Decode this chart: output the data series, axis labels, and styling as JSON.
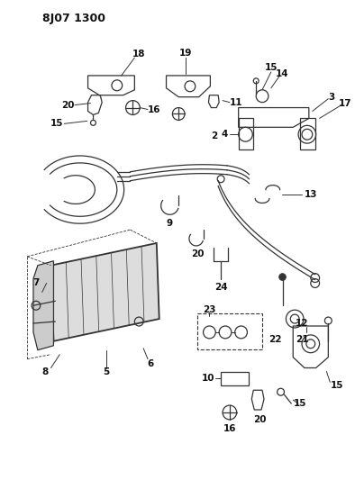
{
  "title": "8J07 1300",
  "bg_color": "#ffffff",
  "line_color": "#333333",
  "label_color": "#111111",
  "fig_width": 3.94,
  "fig_height": 5.33,
  "dpi": 100
}
